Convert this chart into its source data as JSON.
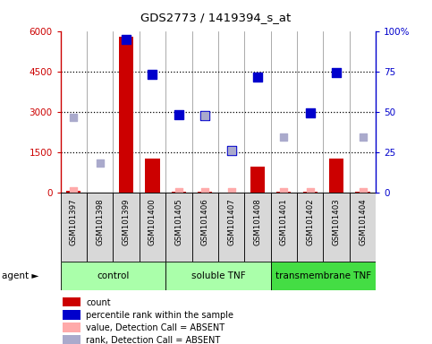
{
  "title": "GDS2773 / 1419394_s_at",
  "samples": [
    "GSM101397",
    "GSM101398",
    "GSM101399",
    "GSM101400",
    "GSM101405",
    "GSM101406",
    "GSM101407",
    "GSM101408",
    "GSM101401",
    "GSM101402",
    "GSM101403",
    "GSM101404"
  ],
  "count_values": [
    60,
    0,
    5800,
    1280,
    30,
    30,
    0,
    950,
    30,
    30,
    1280,
    30
  ],
  "percentile_values": [
    null,
    null,
    5700,
    4400,
    2900,
    2850,
    1550,
    4300,
    null,
    2950,
    4450,
    null
  ],
  "absent_value_values": [
    70,
    null,
    null,
    null,
    40,
    40,
    40,
    null,
    40,
    50,
    null,
    40
  ],
  "absent_rank_values": [
    2800,
    1100,
    null,
    null,
    null,
    2850,
    1550,
    null,
    2050,
    null,
    null,
    2050
  ],
  "ylim_left": [
    0,
    6000
  ],
  "ylim_right": [
    0,
    100
  ],
  "yticks_left": [
    0,
    1500,
    3000,
    4500,
    6000
  ],
  "yticks_right": [
    0,
    25,
    50,
    75,
    100
  ],
  "ytick_labels_left": [
    "0",
    "1500",
    "3000",
    "4500",
    "6000"
  ],
  "ytick_labels_right": [
    "0",
    "25",
    "50",
    "75",
    "100%"
  ],
  "bar_color": "#cc0000",
  "percentile_color": "#0000cc",
  "absent_value_color": "#ffaaaa",
  "absent_rank_color": "#aaaacc",
  "axis_color_left": "#cc0000",
  "axis_color_right": "#0000cc",
  "bg_color": "#d8d8d8",
  "plot_bg": "#ffffff",
  "group_names": [
    "control",
    "soluble TNF",
    "transmembrane TNF"
  ],
  "group_ranges": [
    [
      0,
      3
    ],
    [
      4,
      7
    ],
    [
      8,
      11
    ]
  ],
  "group_colors": [
    "#aaffaa",
    "#aaffaa",
    "#44dd44"
  ],
  "legend_items": [
    {
      "color": "#cc0000",
      "label": "count"
    },
    {
      "color": "#0000cc",
      "label": "percentile rank within the sample"
    },
    {
      "color": "#ffaaaa",
      "label": "value, Detection Call = ABSENT"
    },
    {
      "color": "#aaaacc",
      "label": "rank, Detection Call = ABSENT"
    }
  ]
}
